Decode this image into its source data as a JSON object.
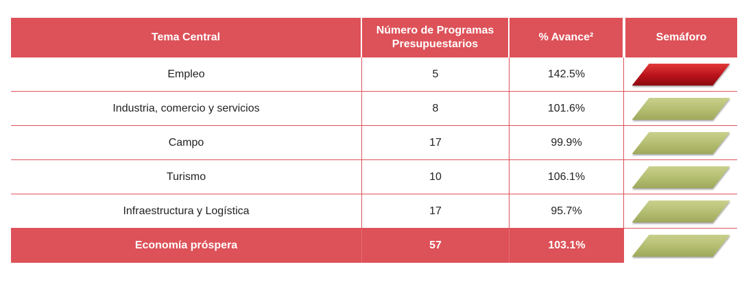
{
  "table": {
    "headers": {
      "tema": "Tema Central",
      "programas": "Número de Programas Presupuestarios",
      "avance": "% Avance²",
      "semaforo": "Semáforo"
    },
    "rows": [
      {
        "tema": "Empleo",
        "programas": "5",
        "avance": "142.5%",
        "semaforo": "red"
      },
      {
        "tema": "Industria, comercio y servicios",
        "programas": "8",
        "avance": "101.6%",
        "semaforo": "green"
      },
      {
        "tema": "Campo",
        "programas": "17",
        "avance": "99.9%",
        "semaforo": "green"
      },
      {
        "tema": "Turismo",
        "programas": "10",
        "avance": "106.1%",
        "semaforo": "green"
      },
      {
        "tema": "Infraestructura y Logística",
        "programas": "17",
        "avance": "95.7%",
        "semaforo": "green"
      }
    ],
    "total": {
      "tema": "Economía próspera",
      "programas": "57",
      "avance": "103.1%",
      "semaforo": "green"
    }
  },
  "colors": {
    "header_bg": "#dd5158",
    "semaforo_green": "#b3bd70",
    "semaforo_red": "#b8121a"
  }
}
